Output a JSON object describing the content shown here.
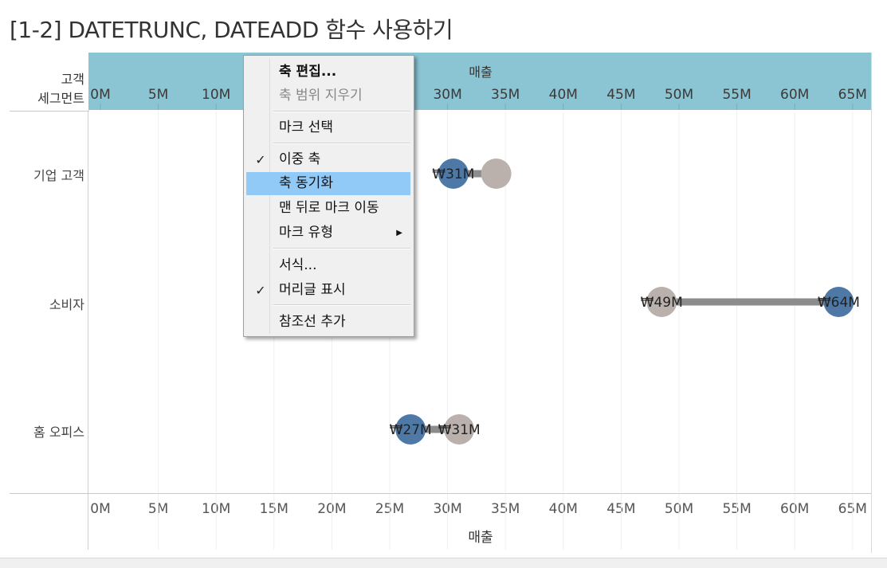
{
  "title": "[1-2] DATETRUNC, DATEADD 함수 사용하기",
  "row_header": {
    "line1": "고객",
    "line2": "세그먼트"
  },
  "colors": {
    "header_band": "#8bc4d3",
    "dark_mark": "#4e79a7",
    "light_mark": "#bab0ac",
    "bar": "#8c8c8c",
    "menu_highlight": "#91c9f7"
  },
  "chart_data": {
    "type": "dumbbell",
    "x_axis_title": "매출",
    "top_axis_title": "매출",
    "xlim": [
      -1,
      66.5
    ],
    "ticks": [
      0,
      5,
      10,
      15,
      20,
      25,
      30,
      35,
      40,
      45,
      50,
      55,
      60,
      65
    ],
    "tick_labels": [
      "0M",
      "5M",
      "10M",
      "15M",
      "20M",
      "25M",
      "30M",
      "35M",
      "40M",
      "45M",
      "50M",
      "55M",
      "60M",
      "65M"
    ],
    "categories": [
      "기업 고객",
      "소비자",
      "홈 오피스"
    ],
    "series": [
      {
        "color": "#4e79a7",
        "values": [
          30.5,
          63.8,
          26.8
        ]
      },
      {
        "color": "#bab0ac",
        "values": [
          34.2,
          48.5,
          31.0
        ]
      }
    ],
    "value_labels": [
      [
        "₩31M",
        ""
      ],
      [
        "₩64M",
        "₩49M"
      ],
      [
        "₩27M",
        "₩31M"
      ]
    ],
    "grid": true
  },
  "context_menu": {
    "items": [
      {
        "label": "축 편집...",
        "bold": true
      },
      {
        "label": "축 범위 지우기",
        "disabled": true
      },
      {
        "label": "마크 선택"
      },
      {
        "label": "이중 축",
        "checked": true
      },
      {
        "label": "축 동기화",
        "hovered": true
      },
      {
        "label": "맨 뒤로 마크 이동"
      },
      {
        "label": "마크 유형",
        "submenu": true
      },
      {
        "label": "서식..."
      },
      {
        "label": "머리글 표시",
        "checked": true
      },
      {
        "label": "참조선 추가"
      }
    ]
  }
}
